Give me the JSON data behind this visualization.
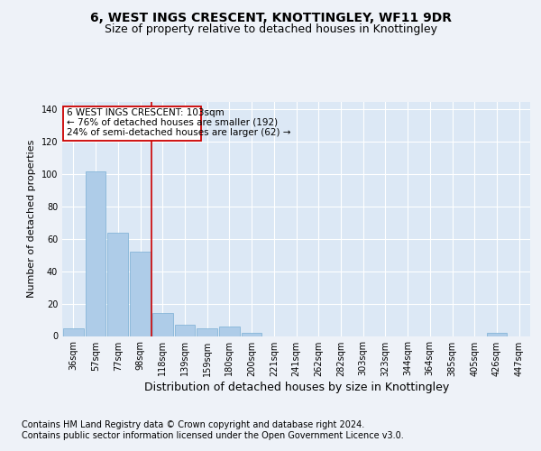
{
  "title": "6, WEST INGS CRESCENT, KNOTTINGLEY, WF11 9DR",
  "subtitle": "Size of property relative to detached houses in Knottingley",
  "xlabel": "Distribution of detached houses by size in Knottingley",
  "ylabel": "Number of detached properties",
  "footer_line1": "Contains HM Land Registry data © Crown copyright and database right 2024.",
  "footer_line2": "Contains public sector information licensed under the Open Government Licence v3.0.",
  "categories": [
    "36sqm",
    "57sqm",
    "77sqm",
    "98sqm",
    "118sqm",
    "139sqm",
    "159sqm",
    "180sqm",
    "200sqm",
    "221sqm",
    "241sqm",
    "262sqm",
    "282sqm",
    "303sqm",
    "323sqm",
    "344sqm",
    "364sqm",
    "385sqm",
    "405sqm",
    "426sqm",
    "447sqm"
  ],
  "values": [
    5,
    102,
    64,
    52,
    14,
    7,
    5,
    6,
    2,
    0,
    0,
    0,
    0,
    0,
    0,
    0,
    0,
    0,
    0,
    2,
    0
  ],
  "bar_color": "#aecce8",
  "bar_edge_color": "#7aafd4",
  "background_color": "#eef2f8",
  "plot_bg_color": "#dce8f5",
  "grid_color": "#ffffff",
  "ylim": [
    0,
    145
  ],
  "yticks": [
    0,
    20,
    40,
    60,
    80,
    100,
    120,
    140
  ],
  "red_line_x": 3.5,
  "annotation_text_line1": "6 WEST INGS CRESCENT: 103sqm",
  "annotation_text_line2": "← 76% of detached houses are smaller (192)",
  "annotation_text_line3": "24% of semi-detached houses are larger (62) →",
  "annotation_box_color": "#ffffff",
  "annotation_border_color": "#cc0000",
  "title_fontsize": 10,
  "subtitle_fontsize": 9,
  "annotation_fontsize": 7.5,
  "tick_fontsize": 7,
  "ylabel_fontsize": 8,
  "xlabel_fontsize": 9,
  "footer_fontsize": 7
}
